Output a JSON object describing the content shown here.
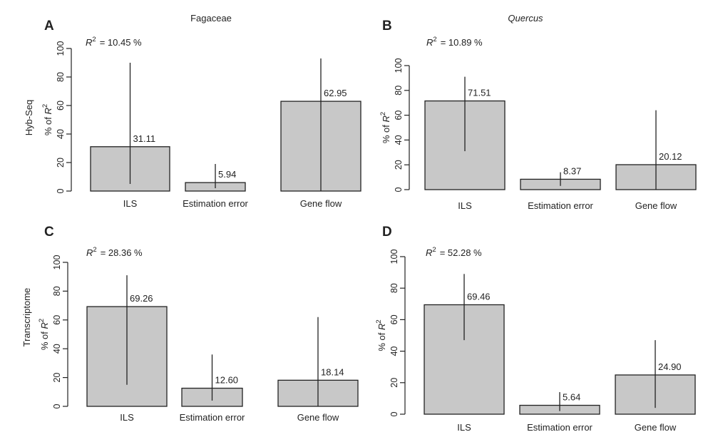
{
  "figure": {
    "row_labels": [
      "Hyb-Seq",
      "Transcriptome"
    ]
  },
  "chart_data": [
    {
      "type": "bar",
      "panel": "A",
      "title": "Fagaceae",
      "title_italic": false,
      "row_label": "Hyb-Seq",
      "r2_symbol": "R",
      "r2_text": "= 10.45 %",
      "ylabel_prefix": "% of ",
      "ylabel_symbol": "R",
      "ylim": [
        0,
        100
      ],
      "yticks": [
        0,
        20,
        40,
        60,
        80,
        100
      ],
      "categories": [
        "ILS",
        "Estimation error",
        "Gene flow"
      ],
      "values": [
        31.11,
        5.94,
        62.95
      ],
      "labels": [
        "31.11",
        "5.94",
        "62.95"
      ],
      "error_low": [
        5,
        2,
        0
      ],
      "error_high": [
        90,
        19,
        93
      ]
    },
    {
      "type": "bar",
      "panel": "B",
      "title": "Quercus",
      "title_italic": true,
      "row_label": "",
      "r2_symbol": "R",
      "r2_text": "= 10.89 %",
      "ylabel_prefix": "% of ",
      "ylabel_symbol": "R",
      "ylim": [
        0,
        100
      ],
      "yticks": [
        0,
        20,
        40,
        60,
        80,
        100
      ],
      "categories": [
        "ILS",
        "Estimation error",
        "Gene flow"
      ],
      "values": [
        71.51,
        8.37,
        20.12
      ],
      "labels": [
        "71.51",
        "8.37",
        "20.12"
      ],
      "error_low": [
        31,
        3,
        0
      ],
      "error_high": [
        91,
        14,
        64
      ]
    },
    {
      "type": "bar",
      "panel": "C",
      "title": "",
      "title_italic": false,
      "row_label": "Transcriptome",
      "r2_symbol": "R",
      "r2_text": "= 28.36 %",
      "ylabel_prefix": "% of ",
      "ylabel_symbol": "R",
      "ylim": [
        0,
        100
      ],
      "yticks": [
        0,
        20,
        40,
        60,
        80,
        100
      ],
      "categories": [
        "ILS",
        "Estimation error",
        "Gene flow"
      ],
      "values": [
        69.26,
        12.6,
        18.14
      ],
      "labels": [
        "69.26",
        "12.60",
        "18.14"
      ],
      "error_low": [
        15,
        4,
        0
      ],
      "error_high": [
        91,
        36,
        62
      ]
    },
    {
      "type": "bar",
      "panel": "D",
      "title": "",
      "title_italic": false,
      "row_label": "",
      "r2_symbol": "R",
      "r2_text": "= 52.28 %",
      "ylabel_prefix": "% of ",
      "ylabel_symbol": "R",
      "ylim": [
        0,
        100
      ],
      "yticks": [
        0,
        20,
        40,
        60,
        80,
        100
      ],
      "categories": [
        "ILS",
        "Estimation error",
        "Gene flow"
      ],
      "values": [
        69.46,
        5.64,
        24.9
      ],
      "labels": [
        "69.46",
        "5.64",
        "24.90"
      ],
      "error_low": [
        47,
        2,
        4
      ],
      "error_high": [
        89,
        14,
        47
      ]
    }
  ]
}
